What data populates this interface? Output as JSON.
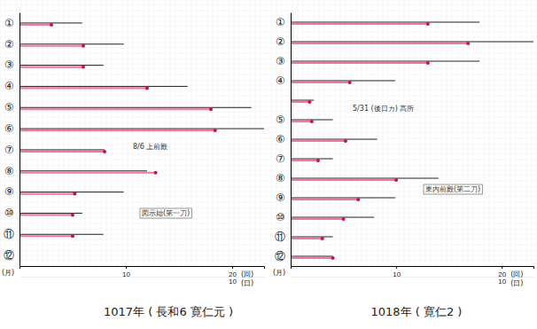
{
  "chart_data": [
    {
      "type": "bar",
      "orientation": "horizontal",
      "title": "1017年 ( 長和6 寛仁元 )",
      "y_label": "(月)",
      "x_label": "(回)",
      "x2_label": "(日)",
      "categories": [
        "①",
        "②",
        "③",
        "④",
        "⑤",
        "⑥",
        "⑦",
        "⑧",
        "⑨",
        "⑩",
        "⑪",
        "⑫"
      ],
      "xlim": [
        0,
        23
      ],
      "xticks": [
        10,
        20
      ],
      "x2lim": [
        0,
        11.5
      ],
      "x2ticks": [
        10
      ],
      "series": [
        {
          "color": "#222222",
          "values": [
            5.9,
            9.8,
            7.9,
            15.8,
            21.8,
            23,
            8,
            12,
            9.8,
            5.9,
            7.9,
            0
          ]
        },
        {
          "color": "#e0508a",
          "axis": "x2",
          "marker": "circle",
          "values": [
            1.5,
            3.0,
            3.0,
            6.0,
            9.0,
            9.2,
            4.0,
            6.4,
            2.6,
            2.5,
            2.5,
            0
          ]
        }
      ],
      "annotations": [
        "8/6 上前殿",
        "図示始(第一刀)"
      ]
    },
    {
      "type": "bar",
      "orientation": "horizontal",
      "title": "1018年 ( 寛仁2 )",
      "y_label": "(月)",
      "x_label": "(回)",
      "x2_label": "(日)",
      "categories": [
        "①",
        "②",
        "③",
        "④",
        null,
        "⑤",
        "⑥",
        "⑦",
        "⑧",
        "⑨",
        "⑩",
        "⑪",
        "⑫"
      ],
      "xlim": [
        0,
        23
      ],
      "xticks": [
        10,
        20
      ],
      "x2lim": [
        0,
        11.5
      ],
      "x2ticks": [
        10
      ],
      "series": [
        {
          "color": "#222222",
          "values": [
            17.9,
            23,
            17.9,
            9.9,
            2.2,
            4,
            8.2,
            4,
            14,
            9.9,
            7.9,
            4,
            4
          ]
        },
        {
          "color": "#e0508a",
          "axis": "x2",
          "marker": "circle",
          "values": [
            6.5,
            8.4,
            6.5,
            2.8,
            0.9,
            1.0,
            2.6,
            1.3,
            5.0,
            3.2,
            2.5,
            1.5,
            2.0
          ]
        }
      ],
      "annotations": [
        "5/31 (後日カ) 高所",
        "東内前殿(第二刀)"
      ]
    }
  ]
}
